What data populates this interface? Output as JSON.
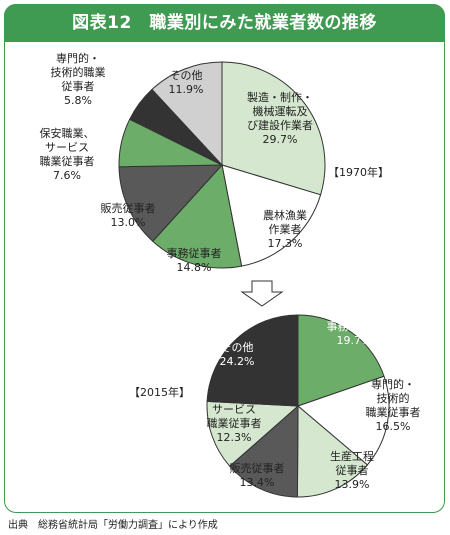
{
  "figure": {
    "title": "図表12　職業別にみた就業者数の推移",
    "source": "出典　総務省統計局「労働力調査」により作成"
  },
  "colors": {
    "accent": "#3f9a52",
    "light_green": "#d5e8cf",
    "white": "#ffffff",
    "mid_green": "#6cad6a",
    "dark_gray": "#595959",
    "black": "#333333",
    "light_gray": "#d0d0d0",
    "outline": "#333333"
  },
  "chart_data": [
    {
      "type": "pie",
      "year_label": "【1970年】",
      "slices": [
        {
          "label": [
            "製造・制作・",
            "機械運転及",
            "び建設作業者"
          ],
          "value": 29.7,
          "value_label": "29.7%",
          "color": "light_green"
        },
        {
          "label": [
            "農林漁業",
            "作業者"
          ],
          "value": 17.3,
          "value_label": "17.3%",
          "color": "white"
        },
        {
          "label": [
            "事務従事者"
          ],
          "value": 14.8,
          "value_label": "14.8%",
          "color": "mid_green"
        },
        {
          "label": [
            "販売従事者"
          ],
          "value": 13.0,
          "value_label": "13.0%",
          "color": "dark_gray"
        },
        {
          "label": [
            "保安職業、",
            "サービス",
            "職業従事者"
          ],
          "value": 7.6,
          "value_label": "7.6%",
          "color": "mid_green"
        },
        {
          "label": [
            "専門的・",
            "技術的職業",
            "従事者"
          ],
          "value": 5.8,
          "value_label": "5.8%",
          "color": "black"
        },
        {
          "label": [
            "その他"
          ],
          "value": 11.9,
          "value_label": "11.9%",
          "color": "light_gray"
        }
      ]
    },
    {
      "type": "pie",
      "year_label": "【2015年】",
      "slices": [
        {
          "label": [
            "事務従事者"
          ],
          "value": 19.7,
          "value_label": "19.7%",
          "color": "mid_green"
        },
        {
          "label": [
            "専門的・",
            "技術的",
            "職業従事者"
          ],
          "value": 16.5,
          "value_label": "16.5%",
          "color": "white"
        },
        {
          "label": [
            "生産工程",
            "従事者"
          ],
          "value": 13.9,
          "value_label": "13.9%",
          "color": "light_green"
        },
        {
          "label": [
            "販売従事者"
          ],
          "value": 13.4,
          "value_label": "13.4%",
          "color": "dark_gray"
        },
        {
          "label": [
            "サービス",
            "職業従事者"
          ],
          "value": 12.3,
          "value_label": "12.3%",
          "color": "light_green"
        },
        {
          "label": [
            "その他"
          ],
          "value": 24.2,
          "value_label": "24.2%",
          "color": "black"
        }
      ]
    }
  ]
}
